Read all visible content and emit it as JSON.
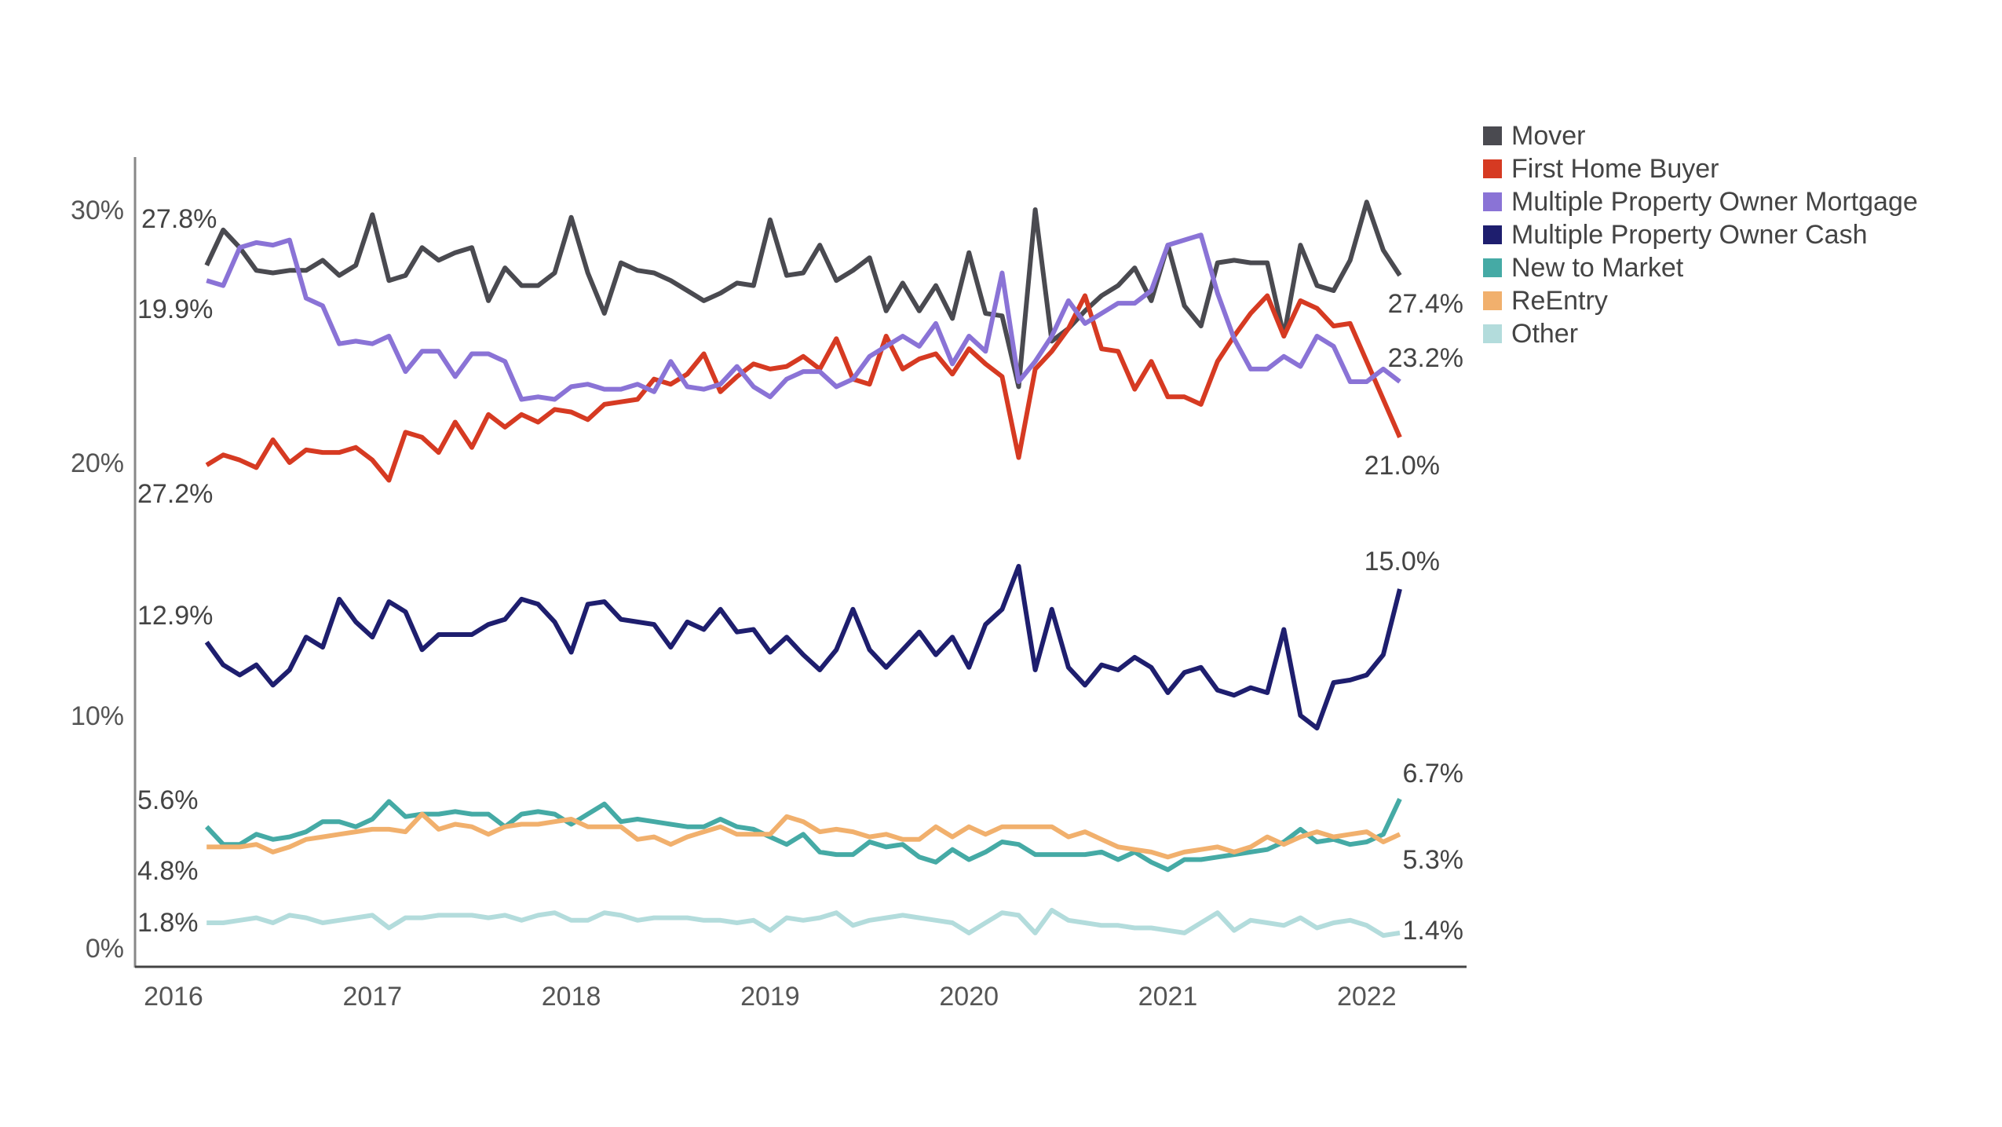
{
  "chart_data": {
    "type": "line",
    "title": "",
    "xlabel": "",
    "ylabel": "",
    "ylim": [
      0,
      30
    ],
    "yticks": [
      "0%",
      "10%",
      "20%",
      "30%"
    ],
    "ytick_values": [
      0,
      10,
      20,
      30
    ],
    "xticks": [
      "2016",
      "2017",
      "2018",
      "2019",
      "2020",
      "2021",
      "2022"
    ],
    "grid": false,
    "legend_position": "right",
    "x": [
      "2016-03",
      "2016-04",
      "2016-05",
      "2016-06",
      "2016-07",
      "2016-08",
      "2016-09",
      "2016-10",
      "2016-11",
      "2016-12",
      "2017-01",
      "2017-02",
      "2017-03",
      "2017-04",
      "2017-05",
      "2017-06",
      "2017-07",
      "2017-08",
      "2017-09",
      "2017-10",
      "2017-11",
      "2017-12",
      "2018-01",
      "2018-02",
      "2018-03",
      "2018-04",
      "2018-05",
      "2018-06",
      "2018-07",
      "2018-08",
      "2018-09",
      "2018-10",
      "2018-11",
      "2018-12",
      "2019-01",
      "2019-02",
      "2019-03",
      "2019-04",
      "2019-05",
      "2019-06",
      "2019-07",
      "2019-08",
      "2019-09",
      "2019-10",
      "2019-11",
      "2019-12",
      "2020-01",
      "2020-02",
      "2020-03",
      "2020-04",
      "2020-05",
      "2020-06",
      "2020-07",
      "2020-08",
      "2020-09",
      "2020-10",
      "2020-11",
      "2020-12",
      "2021-01",
      "2021-02",
      "2021-03",
      "2021-04",
      "2021-05",
      "2021-06",
      "2021-07",
      "2021-08",
      "2021-09",
      "2021-10",
      "2021-11",
      "2021-12",
      "2022-01",
      "2022-02",
      "2022-03"
    ],
    "series": [
      {
        "name": "Mover",
        "color": "#4a4a50",
        "start_label": "27.8%",
        "end_label": "27.4%",
        "values": [
          27.8,
          29.2,
          28.5,
          27.6,
          27.5,
          27.6,
          27.6,
          28.0,
          27.4,
          27.8,
          29.8,
          27.2,
          27.4,
          28.5,
          28.0,
          28.3,
          28.5,
          26.4,
          27.7,
          27.0,
          27.0,
          27.5,
          29.7,
          27.5,
          25.9,
          27.9,
          27.6,
          27.5,
          27.2,
          26.8,
          26.4,
          26.7,
          27.1,
          27.0,
          29.6,
          27.4,
          27.5,
          28.6,
          27.2,
          27.6,
          28.1,
          26.0,
          27.1,
          26.0,
          27.0,
          25.7,
          28.3,
          25.9,
          25.8,
          23.0,
          30.0,
          24.8,
          25.3,
          26.0,
          26.6,
          27.0,
          27.7,
          26.4,
          28.6,
          26.2,
          25.4,
          27.9,
          28.0,
          27.9,
          27.9,
          25.0,
          28.6,
          27.0,
          26.8,
          28.0,
          30.3,
          28.4,
          27.4
        ]
      },
      {
        "name": "First Home Buyer",
        "color": "#d63a22",
        "start_label": "19.9%",
        "end_label": "21.0%",
        "values": [
          19.9,
          20.3,
          20.1,
          19.8,
          20.9,
          20.0,
          20.5,
          20.4,
          20.4,
          20.6,
          20.1,
          19.3,
          21.2,
          21.0,
          20.4,
          21.6,
          20.6,
          21.9,
          21.4,
          21.9,
          21.6,
          22.1,
          22.0,
          21.7,
          22.3,
          22.4,
          22.5,
          23.3,
          23.1,
          23.5,
          24.3,
          22.8,
          23.4,
          23.9,
          23.7,
          23.8,
          24.2,
          23.7,
          24.9,
          23.3,
          23.1,
          25.0,
          23.7,
          24.1,
          24.3,
          23.5,
          24.5,
          23.9,
          23.4,
          20.2,
          23.7,
          24.4,
          25.3,
          26.6,
          24.5,
          24.4,
          22.9,
          24.0,
          22.6,
          22.6,
          22.3,
          24.0,
          25.0,
          25.9,
          26.6,
          25.0,
          26.4,
          26.1,
          25.4,
          25.5,
          24.0,
          22.5,
          21.0
        ]
      },
      {
        "name": "Multiple Property Owner Mortgage",
        "color": "#8a73d6",
        "start_label": "27.2%",
        "end_label": "23.2%",
        "values": [
          27.2,
          27.0,
          28.5,
          28.7,
          28.6,
          28.8,
          26.5,
          26.2,
          24.7,
          24.8,
          24.7,
          25.0,
          23.6,
          24.4,
          24.4,
          23.4,
          24.3,
          24.3,
          24.0,
          22.5,
          22.6,
          22.5,
          23.0,
          23.1,
          22.9,
          22.9,
          23.1,
          22.8,
          24.0,
          23.0,
          22.9,
          23.1,
          23.8,
          23.0,
          22.6,
          23.3,
          23.6,
          23.6,
          23.0,
          23.3,
          24.2,
          24.6,
          25.0,
          24.6,
          25.5,
          23.9,
          25.0,
          24.4,
          27.5,
          23.2,
          24.0,
          25.0,
          26.4,
          25.5,
          25.9,
          26.3,
          26.3,
          26.8,
          28.6,
          28.8,
          29.0,
          26.7,
          24.9,
          23.7,
          23.7,
          24.2,
          23.8,
          25.0,
          24.6,
          23.2,
          23.2,
          23.7,
          23.2
        ]
      },
      {
        "name": "Multiple Property Owner Cash",
        "color": "#1e1e6e",
        "start_label": "12.9%",
        "end_label": "15.0%",
        "values": [
          12.9,
          12.0,
          11.6,
          12.0,
          11.2,
          11.8,
          13.1,
          12.7,
          14.6,
          13.7,
          13.1,
          14.5,
          14.1,
          12.6,
          13.2,
          13.2,
          13.2,
          13.6,
          13.8,
          14.6,
          14.4,
          13.7,
          12.5,
          14.4,
          14.5,
          13.8,
          13.7,
          13.6,
          12.7,
          13.7,
          13.4,
          14.2,
          13.3,
          13.4,
          12.5,
          13.1,
          12.4,
          11.8,
          12.6,
          14.2,
          12.6,
          11.9,
          12.6,
          13.3,
          12.4,
          13.1,
          11.9,
          13.6,
          14.2,
          15.9,
          11.8,
          14.2,
          11.9,
          11.2,
          12.0,
          11.8,
          12.3,
          11.9,
          10.9,
          11.7,
          11.9,
          11.0,
          10.8,
          11.1,
          10.9,
          13.4,
          10.0,
          9.5,
          11.3,
          11.4,
          11.6,
          12.4,
          15.0
        ]
      },
      {
        "name": "New to Market",
        "color": "#45aaa5",
        "start_label": "5.6%",
        "end_label": "6.7%",
        "values": [
          5.6,
          4.9,
          4.9,
          5.3,
          5.1,
          5.2,
          5.4,
          5.8,
          5.8,
          5.6,
          5.9,
          6.6,
          6.0,
          6.1,
          6.1,
          6.2,
          6.1,
          6.1,
          5.6,
          6.1,
          6.2,
          6.1,
          5.7,
          6.1,
          6.5,
          5.8,
          5.9,
          5.8,
          5.7,
          5.6,
          5.6,
          5.9,
          5.6,
          5.5,
          5.2,
          4.9,
          5.3,
          4.6,
          4.5,
          4.5,
          5.0,
          4.8,
          4.9,
          4.4,
          4.2,
          4.7,
          4.3,
          4.6,
          5.0,
          4.9,
          4.5,
          4.5,
          4.5,
          4.5,
          4.6,
          4.3,
          4.6,
          4.2,
          3.9,
          4.3,
          4.3,
          4.4,
          4.5,
          4.6,
          4.7,
          5.0,
          5.5,
          5.0,
          5.1,
          4.9,
          5.0,
          5.3,
          6.7
        ]
      },
      {
        "name": "ReEntry",
        "color": "#f1b06d",
        "start_label": "4.8%",
        "end_label": "5.3%",
        "values": [
          4.8,
          4.8,
          4.8,
          4.9,
          4.6,
          4.8,
          5.1,
          5.2,
          5.3,
          5.4,
          5.5,
          5.5,
          5.4,
          6.1,
          5.5,
          5.7,
          5.6,
          5.3,
          5.6,
          5.7,
          5.7,
          5.8,
          5.9,
          5.6,
          5.6,
          5.6,
          5.1,
          5.2,
          4.9,
          5.2,
          5.4,
          5.6,
          5.3,
          5.3,
          5.3,
          6.0,
          5.8,
          5.4,
          5.5,
          5.4,
          5.2,
          5.3,
          5.1,
          5.1,
          5.6,
          5.2,
          5.6,
          5.3,
          5.6,
          5.6,
          5.6,
          5.6,
          5.2,
          5.4,
          5.1,
          4.8,
          4.7,
          4.6,
          4.4,
          4.6,
          4.7,
          4.8,
          4.6,
          4.8,
          5.2,
          4.9,
          5.2,
          5.4,
          5.2,
          5.3,
          5.4,
          5.0,
          5.3
        ]
      },
      {
        "name": "Other",
        "color": "#b3dcdc",
        "start_label": "1.8%",
        "end_label": "1.4%",
        "values": [
          1.8,
          1.8,
          1.9,
          2.0,
          1.8,
          2.1,
          2.0,
          1.8,
          1.9,
          2.0,
          2.1,
          1.6,
          2.0,
          2.0,
          2.1,
          2.1,
          2.1,
          2.0,
          2.1,
          1.9,
          2.1,
          2.2,
          1.9,
          1.9,
          2.2,
          2.1,
          1.9,
          2.0,
          2.0,
          2.0,
          1.9,
          1.9,
          1.8,
          1.9,
          1.5,
          2.0,
          1.9,
          2.0,
          2.2,
          1.7,
          1.9,
          2.0,
          2.1,
          2.0,
          1.9,
          1.8,
          1.4,
          1.8,
          2.2,
          2.1,
          1.4,
          2.3,
          1.9,
          1.8,
          1.7,
          1.7,
          1.6,
          1.6,
          1.5,
          1.4,
          1.8,
          2.2,
          1.5,
          1.9,
          1.8,
          1.7,
          2.0,
          1.6,
          1.8,
          1.9,
          1.7,
          1.3,
          1.4
        ]
      }
    ]
  }
}
